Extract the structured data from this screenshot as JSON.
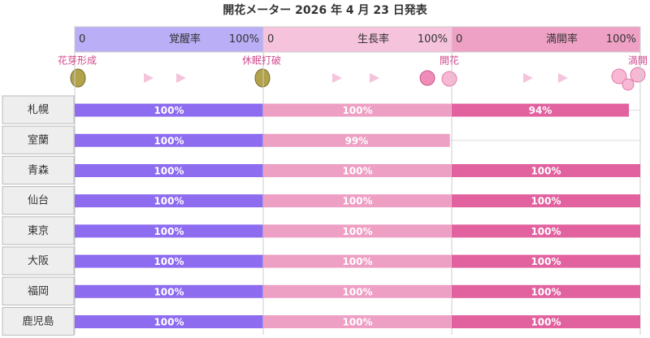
{
  "chart_data": {
    "type": "bar",
    "orientation": "horizontal",
    "title": "開花メーター 2026 年 4 月 23 日発表",
    "categories": [
      "札幌",
      "室蘭",
      "青森",
      "仙台",
      "東京",
      "大阪",
      "福岡",
      "鹿児島"
    ],
    "stages": [
      "花芽形成",
      "休眠打破",
      "開花",
      "満開"
    ],
    "xlim": [
      0,
      100
    ],
    "xticks": [
      0,
      {
        "value": 100,
        "label": "100%"
      }
    ],
    "series": [
      {
        "name": "覚醒率",
        "color": "#8d6cf0",
        "header_color": "#baaef6",
        "values": [
          100,
          100,
          100,
          100,
          100,
          100,
          100,
          100
        ],
        "value_labels": [
          "100%",
          "100%",
          "100%",
          "100%",
          "100%",
          "100%",
          "100%",
          "100%"
        ]
      },
      {
        "name": "生長率",
        "color": "#ee9fc4",
        "header_color": "#f5c3dc",
        "values": [
          100,
          99,
          100,
          100,
          100,
          100,
          100,
          100
        ],
        "value_labels": [
          "100%",
          "99%",
          "100%",
          "100%",
          "100%",
          "100%",
          "100%",
          "100%"
        ]
      },
      {
        "name": "満開率",
        "color": "#e2619f",
        "header_color": "#efa1c5",
        "values": [
          94,
          null,
          100,
          100,
          100,
          100,
          100,
          100
        ],
        "value_labels": [
          "94%",
          null,
          "100%",
          "100%",
          "100%",
          "100%",
          "100%",
          "100%"
        ]
      }
    ]
  }
}
